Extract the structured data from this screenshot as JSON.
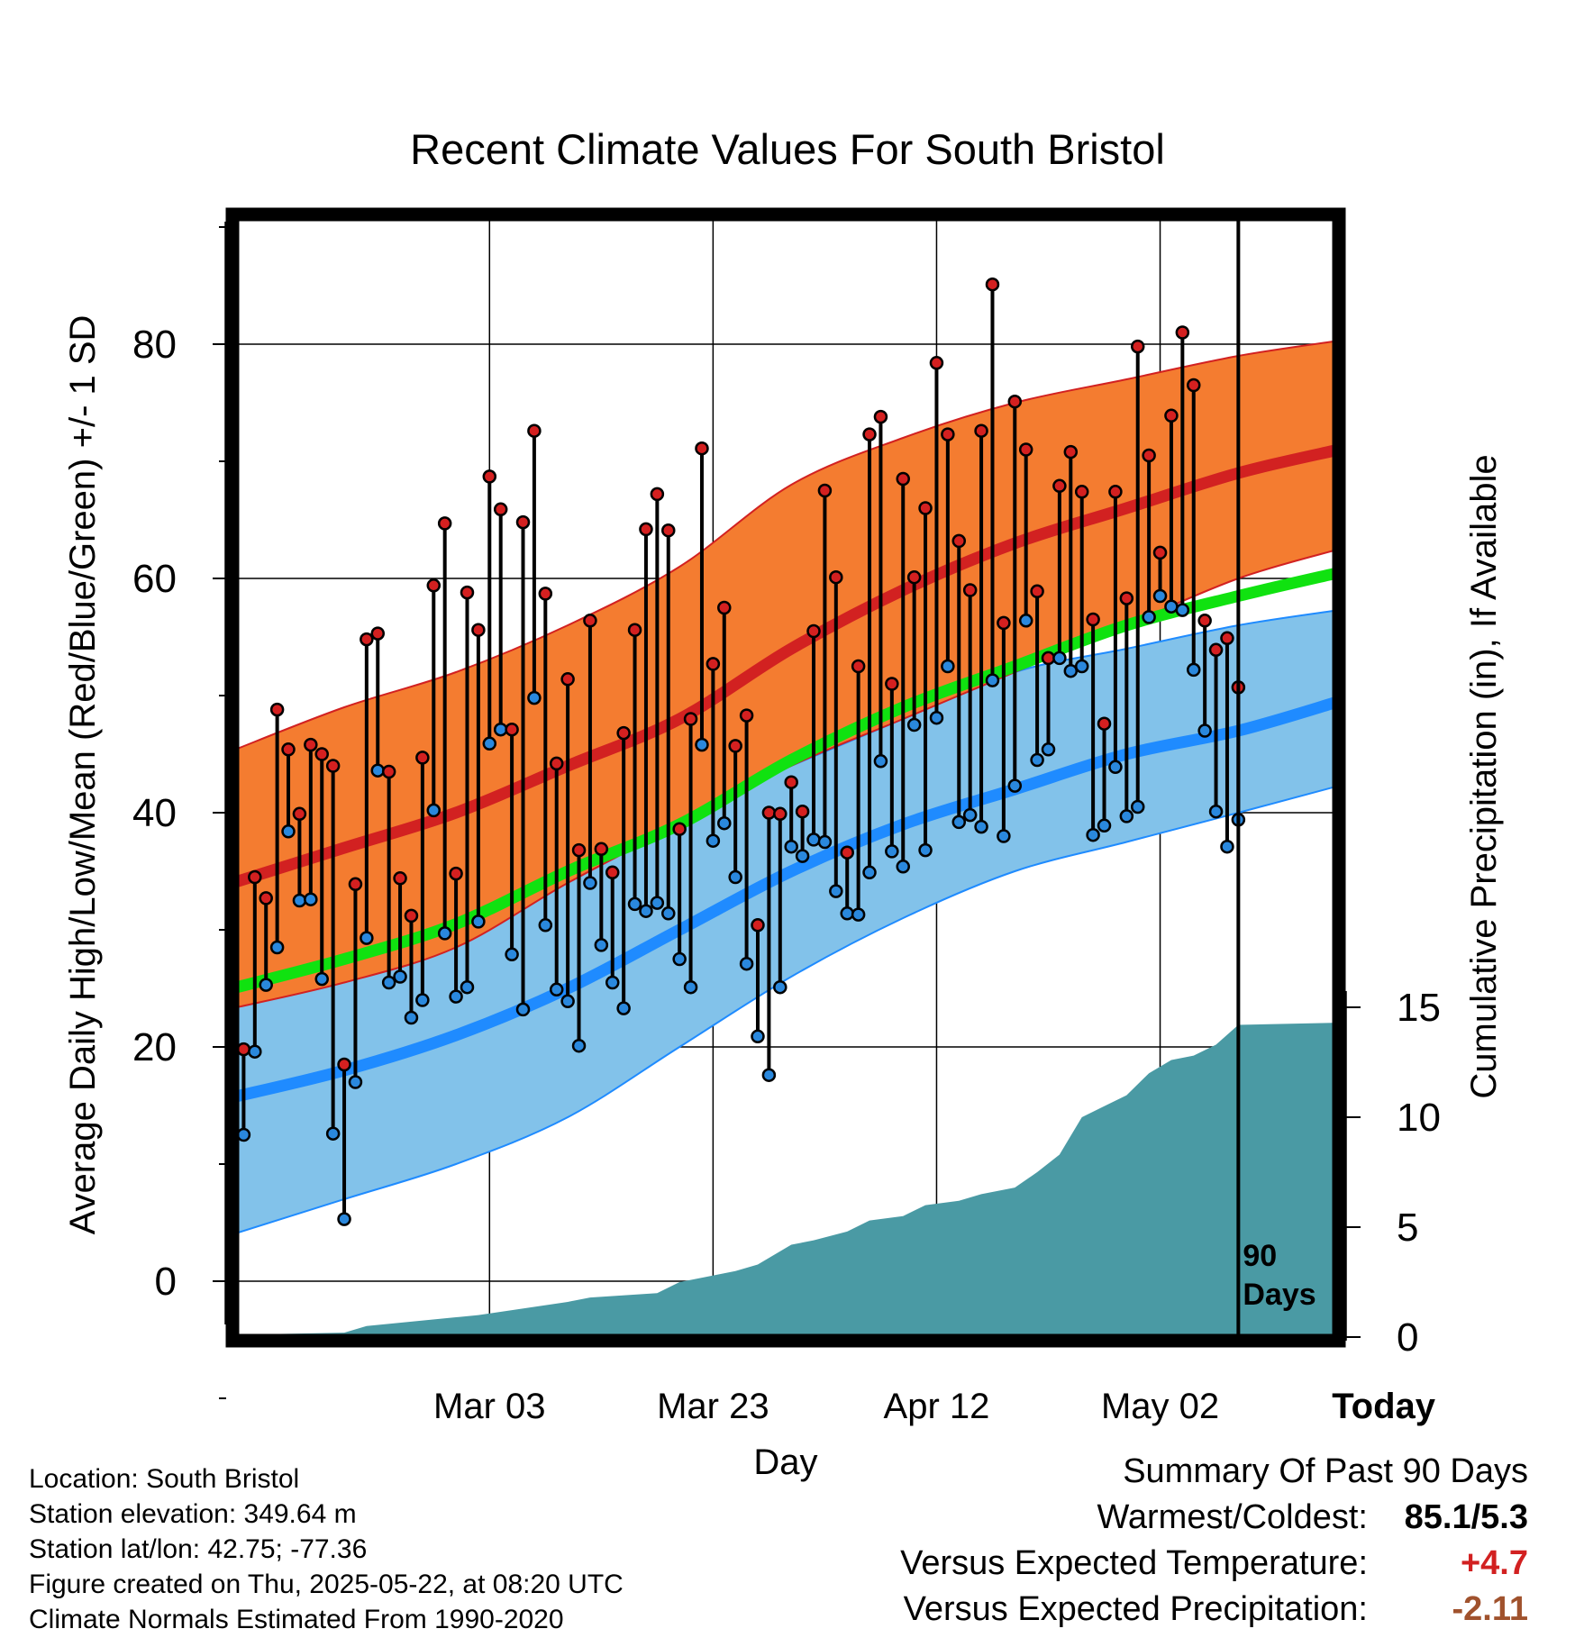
{
  "title": "Recent Climate Values For South Bristol",
  "footer": {
    "location": "Location: South Bristol",
    "elevation": "Station elevation: 349.64 m",
    "latlon": "Station lat/lon: 42.75; -77.36",
    "created": "Figure created on Thu, 2025-05-22, at 08:20 UTC",
    "normals": "Climate Normals Estimated From 1990-2020"
  },
  "summary": {
    "heading": "Summary Of Past 90 Days",
    "warmest_label": "Warmest/Coldest:",
    "warmest_value": "85.1/5.3",
    "temp_label": "Versus Expected Temperature:",
    "temp_value": "+4.7",
    "precip_label": "Versus Expected Precipitation:",
    "precip_value": "-2.11"
  },
  "colors": {
    "high_band": "#f47c30",
    "high_line": "#d22121",
    "low_band": "#82c2ea",
    "low_line": "#1f8bff",
    "mean_line": "#10e210",
    "precip": "#4a9aa4",
    "high_marker": "#d42020",
    "low_marker": "#2a88dd"
  },
  "chart_data": {
    "type": "line",
    "xlabel": "Day",
    "ylabel": "Average Daily High/Low/Mean (Red/Blue/Green) +/- 1 SD",
    "y2label": "Cumulative Precipitation (in), If Available",
    "x_ticks": [
      "Mar 03",
      "Mar 23",
      "Apr 12",
      "May 02",
      "Today"
    ],
    "ylim": [
      -4,
      90
    ],
    "yticks": [
      0,
      20,
      40,
      60,
      80
    ],
    "y2lim": [
      0,
      30
    ],
    "y2ticks": [
      0,
      5,
      10,
      15
    ],
    "grid": true,
    "today_label": "90 Days",
    "x_range_days": [
      -90,
      9
    ],
    "normals": {
      "x": [
        -90,
        -80,
        -70,
        -60,
        -50,
        -40,
        -30,
        -20,
        -10,
        0,
        9
      ],
      "high_mean": [
        34,
        37,
        40,
        44,
        48,
        54,
        59,
        63,
        66,
        69,
        71
      ],
      "high_upper": [
        45.3,
        49,
        52,
        56,
        61,
        68,
        72,
        75,
        77,
        79,
        80.3
      ],
      "high_lower": [
        23.3,
        25.5,
        28.5,
        34,
        39,
        44,
        48,
        52,
        56,
        60,
        62.5
      ],
      "low_mean": [
        15.7,
        18,
        21,
        25,
        30,
        35,
        39,
        42,
        45,
        47,
        49.5
      ],
      "low_upper": [
        27.5,
        30,
        32,
        36,
        40,
        44,
        48,
        52,
        54,
        56,
        57.3
      ],
      "low_lower": [
        4,
        7,
        10,
        14,
        20,
        26,
        31,
        35,
        37.5,
        40,
        42.3
      ],
      "mean": [
        25,
        27.5,
        30.5,
        35,
        39,
        44.5,
        49,
        52.5,
        56,
        58.5,
        60.5
      ]
    },
    "observed": {
      "day": [
        -89,
        -88,
        -87,
        -86,
        -85,
        -84,
        -83,
        -82,
        -81,
        -80,
        -79,
        -78,
        -77,
        -76,
        -75,
        -74,
        -73,
        -72,
        -71,
        -70,
        -69,
        -68,
        -67,
        -66,
        -65,
        -64,
        -63,
        -62,
        -61,
        -60,
        -59,
        -58,
        -57,
        -56,
        -55,
        -54,
        -53,
        -52,
        -51,
        -50,
        -49,
        -48,
        -47,
        -46,
        -45,
        -44,
        -43,
        -42,
        -41,
        -40,
        -39,
        -38,
        -37,
        -36,
        -35,
        -34,
        -33,
        -32,
        -31,
        -30,
        -29,
        -28,
        -27,
        -26,
        -25,
        -24,
        -23,
        -22,
        -21,
        -20,
        -19,
        -18,
        -17,
        -16,
        -15,
        -14,
        -13,
        -12,
        -11,
        -10,
        -9,
        -8,
        -7,
        -6,
        -5,
        -4,
        -3,
        -2,
        -1,
        0
      ],
      "high": [
        19.8,
        34.5,
        32.7,
        48.8,
        45.4,
        39.9,
        45.8,
        45.0,
        44.0,
        18.5,
        33.9,
        54.8,
        55.3,
        43.5,
        34.4,
        31.2,
        44.7,
        59.4,
        64.7,
        34.8,
        58.8,
        55.6,
        68.7,
        65.9,
        47.1,
        64.8,
        72.6,
        58.7,
        44.2,
        51.4,
        36.8,
        56.4,
        36.9,
        34.9,
        46.8,
        55.6,
        64.2,
        67.2,
        64.1,
        38.6,
        48.0,
        71.1,
        52.7,
        57.5,
        45.7,
        48.3,
        30.4,
        40.0,
        39.9,
        42.6,
        40.1,
        55.5,
        67.5,
        60.1,
        36.6,
        52.5,
        72.3,
        73.8,
        51.0,
        68.5,
        60.1,
        66.0,
        78.4,
        72.3,
        63.2,
        59.0,
        72.6,
        85.1,
        56.2,
        75.1,
        71.0,
        58.9,
        53.2,
        67.9,
        70.8,
        67.4,
        56.5,
        47.6,
        67.4,
        58.3,
        79.8,
        70.5,
        62.2,
        73.9,
        81.0,
        76.5,
        56.4,
        53.9,
        54.9,
        50.7
      ],
      "low": [
        12.5,
        19.6,
        25.3,
        28.5,
        38.4,
        32.5,
        32.6,
        25.8,
        12.6,
        5.3,
        17.0,
        29.3,
        43.6,
        25.5,
        26.0,
        22.5,
        24.0,
        40.2,
        29.7,
        24.3,
        25.1,
        30.7,
        45.9,
        47.1,
        27.9,
        23.2,
        49.8,
        30.4,
        24.9,
        23.9,
        20.1,
        34.0,
        28.7,
        25.5,
        23.3,
        32.2,
        31.6,
        32.3,
        31.4,
        27.5,
        25.1,
        45.8,
        37.6,
        39.1,
        34.5,
        27.1,
        20.9,
        17.6,
        25.1,
        37.1,
        36.3,
        37.7,
        37.5,
        33.3,
        31.4,
        31.3,
        34.9,
        44.4,
        36.7,
        35.4,
        47.5,
        36.8,
        48.1,
        52.5,
        39.2,
        39.8,
        38.8,
        51.3,
        38.0,
        42.3,
        56.4,
        44.5,
        45.4,
        53.2,
        52.1,
        52.5,
        38.1,
        38.9,
        43.9,
        39.7,
        40.5,
        56.7,
        58.5,
        57.6,
        57.3,
        52.2,
        47.0,
        40.1,
        37.1,
        39.4
      ]
    },
    "precipitation": {
      "day": [
        -90,
        -80,
        -78,
        -70,
        -68,
        -60,
        -58,
        -52,
        -50,
        -45,
        -43,
        -40,
        -38,
        -35,
        -33,
        -30,
        -28,
        -25,
        -23,
        -20,
        -18,
        -16,
        -14,
        -12,
        -10,
        -8,
        -6,
        -4,
        -2,
        0,
        9
      ],
      "cumulative": [
        0.1,
        0.2,
        0.5,
        0.9,
        1.0,
        1.6,
        1.8,
        2.0,
        2.5,
        3.0,
        3.3,
        4.2,
        4.4,
        4.8,
        5.3,
        5.5,
        6.0,
        6.2,
        6.5,
        6.8,
        7.5,
        8.3,
        10.0,
        10.5,
        11.0,
        12.0,
        12.6,
        12.8,
        13.3,
        14.2,
        14.3
      ]
    }
  }
}
